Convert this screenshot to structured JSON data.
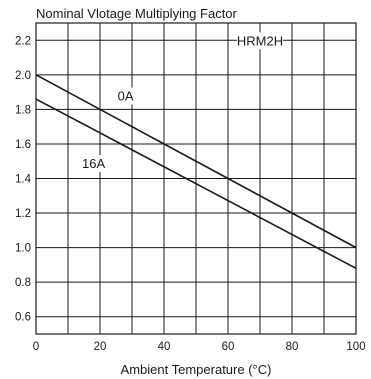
{
  "chart_data": {
    "type": "line",
    "title": "Nominal Vlotage Multiplying Factor",
    "xlabel": "Ambient Temperature (°C)",
    "ylabel": "",
    "xlim": [
      0,
      100
    ],
    "ylim": [
      0.5,
      2.3
    ],
    "x_ticks": [
      "0",
      "20",
      "40",
      "60",
      "80",
      "100"
    ],
    "y_ticks": [
      "0.6",
      "0.8",
      "1.0",
      "1.2",
      "1.4",
      "1.6",
      "1.8",
      "2.0",
      "2.2"
    ],
    "x_ticks_values": [
      0,
      20,
      40,
      60,
      80,
      100
    ],
    "y_ticks_values": [
      0.6,
      0.8,
      1.0,
      1.2,
      1.4,
      1.6,
      1.8,
      2.0,
      2.2
    ],
    "grid": true,
    "legend": "none",
    "model_label": "HRM2H",
    "series": [
      {
        "name": "0A",
        "x": [
          0,
          100
        ],
        "y": [
          2.0,
          1.0
        ]
      },
      {
        "name": "16A",
        "x": [
          0,
          100
        ],
        "y": [
          1.86,
          0.88
        ]
      }
    ],
    "colors": {
      "line": "#1a1a1a",
      "grid": "#1a1a1a",
      "frame": "#1a1a1a"
    }
  }
}
